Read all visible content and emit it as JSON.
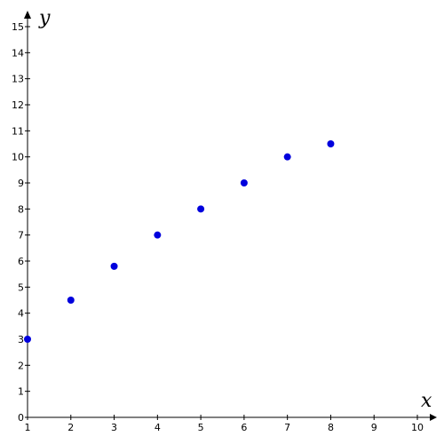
{
  "chart_data": {
    "type": "scatter",
    "title": "",
    "xlabel": "x",
    "ylabel": "y",
    "xlim": [
      1,
      10
    ],
    "ylim": [
      0,
      15
    ],
    "x_ticks": [
      1,
      2,
      3,
      4,
      5,
      6,
      7,
      8,
      9,
      10
    ],
    "y_ticks": [
      0,
      1,
      2,
      3,
      4,
      5,
      6,
      7,
      8,
      9,
      10,
      11,
      12,
      13,
      14,
      15
    ],
    "grid": false,
    "series": [
      {
        "x": [
          1,
          2,
          3,
          4,
          5,
          6,
          7,
          8
        ],
        "y": [
          3,
          4.5,
          5.8,
          7,
          8,
          9,
          10,
          10.5
        ],
        "color": "#0000dd"
      }
    ]
  }
}
